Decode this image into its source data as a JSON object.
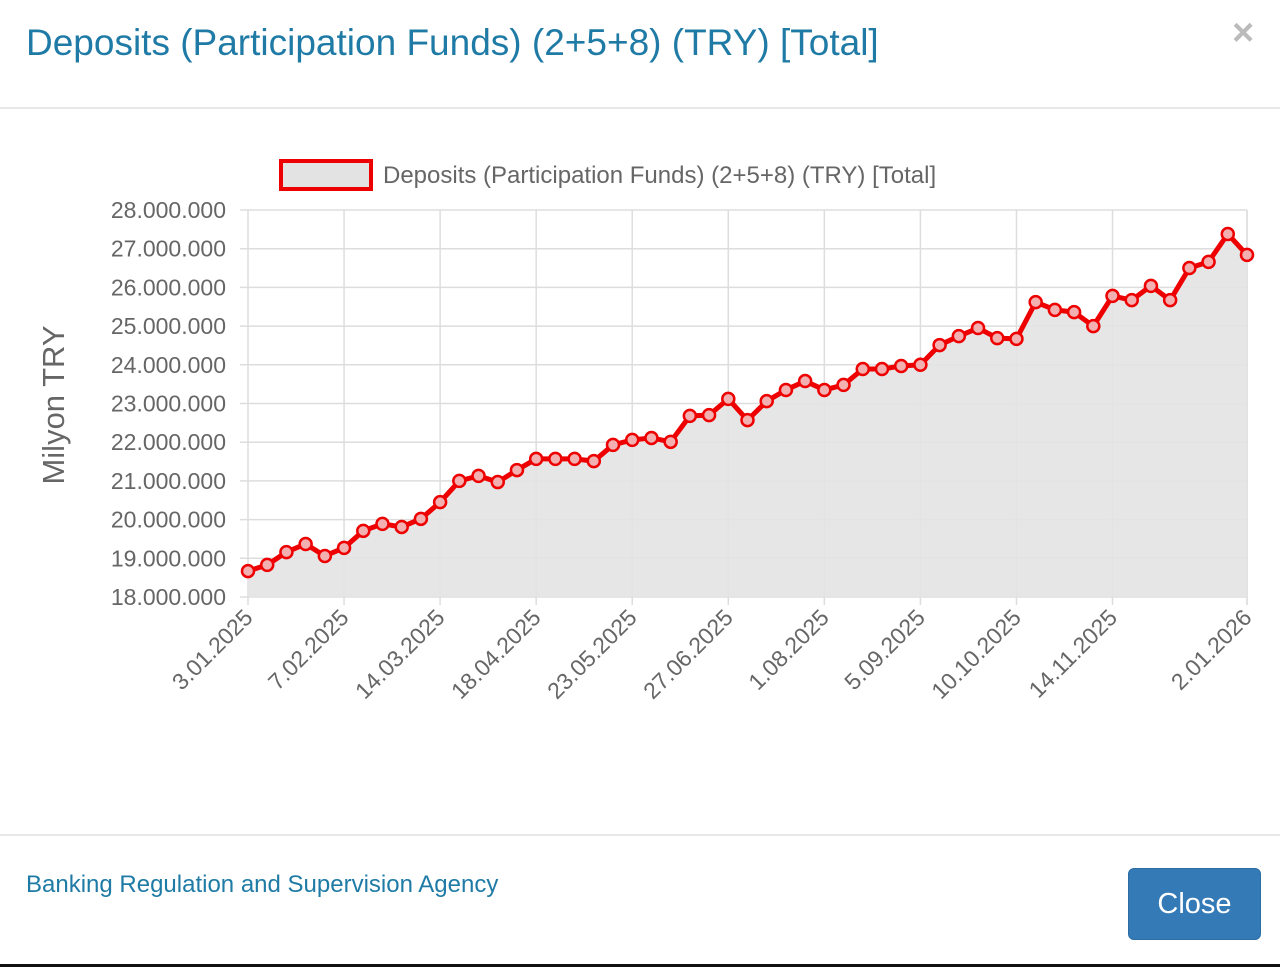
{
  "modal": {
    "title": "Deposits (Participation Funds) (2+5+8) (TRY) [Total]",
    "close_icon": "×",
    "footer_link": "Banking Regulation and Supervision Agency",
    "close_button": "Close"
  },
  "colors": {
    "line": "#ee0000",
    "fill": "#e3e3e3",
    "title": "#1f7ba6",
    "button": "#337ab7"
  },
  "chart_data": {
    "type": "area",
    "legend": {
      "label": "Deposits (Participation Funds) (2+5+8) (TRY) [Total]",
      "position": "top"
    },
    "ylabel": "Milyon TRY",
    "xlabel": "",
    "ylim": [
      18000000,
      28000000
    ],
    "y_ticks": [
      "28.000.000",
      "27.000.000",
      "26.000.000",
      "25.000.000",
      "24.000.000",
      "23.000.000",
      "22.000.000",
      "21.000.000",
      "20.000.000",
      "19.000.000",
      "18.000.000"
    ],
    "x_tick_labels": [
      "3.01.2025",
      "7.02.2025",
      "14.03.2025",
      "18.04.2025",
      "23.05.2025",
      "27.06.2025",
      "1.08.2025",
      "5.09.2025",
      "10.10.2025",
      "14.11.2025",
      "2.01.2026"
    ],
    "grid": true,
    "x": [
      "3.01.2025",
      "10.01.2025",
      "17.01.2025",
      "24.01.2025",
      "31.01.2025",
      "7.02.2025",
      "14.02.2025",
      "21.02.2025",
      "28.02.2025",
      "7.03.2025",
      "14.03.2025",
      "21.03.2025",
      "28.03.2025",
      "4.04.2025",
      "11.04.2025",
      "18.04.2025",
      "25.04.2025",
      "2.05.2025",
      "9.05.2025",
      "16.05.2025",
      "23.05.2025",
      "30.05.2025",
      "6.06.2025",
      "13.06.2025",
      "20.06.2025",
      "27.06.2025",
      "4.07.2025",
      "11.07.2025",
      "18.07.2025",
      "25.07.2025",
      "1.08.2025",
      "8.08.2025",
      "15.08.2025",
      "22.08.2025",
      "29.08.2025",
      "5.09.2025",
      "12.09.2025",
      "19.09.2025",
      "26.09.2025",
      "3.10.2025",
      "10.10.2025",
      "17.10.2025",
      "24.10.2025",
      "31.10.2025",
      "7.11.2025",
      "14.11.2025",
      "21.11.2025",
      "28.11.2025",
      "5.12.2025",
      "12.12.2025",
      "19.12.2025",
      "26.12.2025",
      "2.01.2026"
    ],
    "values": [
      18670000,
      18830000,
      19160000,
      19370000,
      19060000,
      19270000,
      19710000,
      19890000,
      19810000,
      20020000,
      20450000,
      21000000,
      21130000,
      20970000,
      21280000,
      21570000,
      21570000,
      21570000,
      21510000,
      21930000,
      22060000,
      22110000,
      22010000,
      22680000,
      22700000,
      23120000,
      22570000,
      23060000,
      23350000,
      23580000,
      23350000,
      23480000,
      23890000,
      23890000,
      23970000,
      24000000,
      24510000,
      24740000,
      24950000,
      24690000,
      24670000,
      25620000,
      25420000,
      25360000,
      25000000,
      25780000,
      25670000,
      26040000,
      25670000,
      26500000,
      26660000,
      27380000,
      26840000
    ]
  }
}
